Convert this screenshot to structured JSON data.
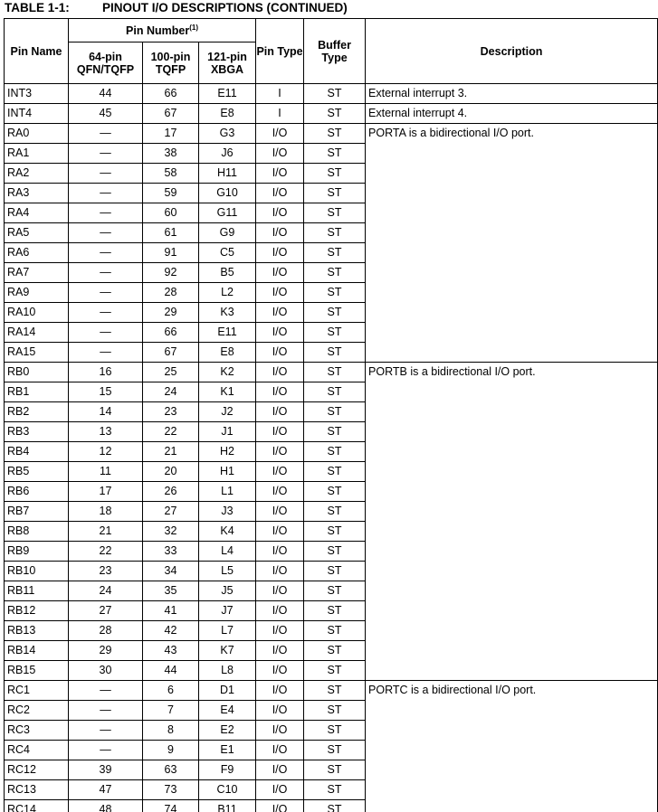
{
  "table": {
    "label": "TABLE 1-1:",
    "title": "PINOUT I/O DESCRIPTIONS (CONTINUED)",
    "headers": {
      "pin_name": "Pin Name",
      "pin_number": "Pin Number",
      "pin_number_note": "(1)",
      "col_64": "64-pin QFN/TQFP",
      "col_100": "100-pin TQFP",
      "col_121": "121-pin XBGA",
      "pin_type": "Pin Type",
      "buffer_type": "Buffer Type",
      "description": "Description"
    },
    "rows": [
      {
        "name": "INT3",
        "p64": "44",
        "p100": "66",
        "p121": "E11",
        "type": "I",
        "buffer": "ST",
        "desc": "External interrupt 3.",
        "span": 1
      },
      {
        "name": "INT4",
        "p64": "45",
        "p100": "67",
        "p121": "E8",
        "type": "I",
        "buffer": "ST",
        "desc": "External interrupt 4.",
        "span": 1
      },
      {
        "name": "RA0",
        "p64": "—",
        "p100": "17",
        "p121": "G3",
        "type": "I/O",
        "buffer": "ST",
        "desc": "PORTA is a bidirectional I/O port.",
        "span": 12
      },
      {
        "name": "RA1",
        "p64": "—",
        "p100": "38",
        "p121": "J6",
        "type": "I/O",
        "buffer": "ST"
      },
      {
        "name": "RA2",
        "p64": "—",
        "p100": "58",
        "p121": "H11",
        "type": "I/O",
        "buffer": "ST"
      },
      {
        "name": "RA3",
        "p64": "—",
        "p100": "59",
        "p121": "G10",
        "type": "I/O",
        "buffer": "ST"
      },
      {
        "name": "RA4",
        "p64": "—",
        "p100": "60",
        "p121": "G11",
        "type": "I/O",
        "buffer": "ST"
      },
      {
        "name": "RA5",
        "p64": "—",
        "p100": "61",
        "p121": "G9",
        "type": "I/O",
        "buffer": "ST"
      },
      {
        "name": "RA6",
        "p64": "—",
        "p100": "91",
        "p121": "C5",
        "type": "I/O",
        "buffer": "ST"
      },
      {
        "name": "RA7",
        "p64": "—",
        "p100": "92",
        "p121": "B5",
        "type": "I/O",
        "buffer": "ST"
      },
      {
        "name": "RA9",
        "p64": "—",
        "p100": "28",
        "p121": "L2",
        "type": "I/O",
        "buffer": "ST"
      },
      {
        "name": "RA10",
        "p64": "—",
        "p100": "29",
        "p121": "K3",
        "type": "I/O",
        "buffer": "ST"
      },
      {
        "name": "RA14",
        "p64": "—",
        "p100": "66",
        "p121": "E11",
        "type": "I/O",
        "buffer": "ST"
      },
      {
        "name": "RA15",
        "p64": "—",
        "p100": "67",
        "p121": "E8",
        "type": "I/O",
        "buffer": "ST"
      },
      {
        "name": "RB0",
        "p64": "16",
        "p100": "25",
        "p121": "K2",
        "type": "I/O",
        "buffer": "ST",
        "desc": "PORTB is a bidirectional I/O port.",
        "span": 16
      },
      {
        "name": "RB1",
        "p64": "15",
        "p100": "24",
        "p121": "K1",
        "type": "I/O",
        "buffer": "ST"
      },
      {
        "name": "RB2",
        "p64": "14",
        "p100": "23",
        "p121": "J2",
        "type": "I/O",
        "buffer": "ST"
      },
      {
        "name": "RB3",
        "p64": "13",
        "p100": "22",
        "p121": "J1",
        "type": "I/O",
        "buffer": "ST"
      },
      {
        "name": "RB4",
        "p64": "12",
        "p100": "21",
        "p121": "H2",
        "type": "I/O",
        "buffer": "ST"
      },
      {
        "name": "RB5",
        "p64": "11",
        "p100": "20",
        "p121": "H1",
        "type": "I/O",
        "buffer": "ST"
      },
      {
        "name": "RB6",
        "p64": "17",
        "p100": "26",
        "p121": "L1",
        "type": "I/O",
        "buffer": "ST"
      },
      {
        "name": "RB7",
        "p64": "18",
        "p100": "27",
        "p121": "J3",
        "type": "I/O",
        "buffer": "ST"
      },
      {
        "name": "RB8",
        "p64": "21",
        "p100": "32",
        "p121": "K4",
        "type": "I/O",
        "buffer": "ST"
      },
      {
        "name": "RB9",
        "p64": "22",
        "p100": "33",
        "p121": "L4",
        "type": "I/O",
        "buffer": "ST"
      },
      {
        "name": "RB10",
        "p64": "23",
        "p100": "34",
        "p121": "L5",
        "type": "I/O",
        "buffer": "ST"
      },
      {
        "name": "RB11",
        "p64": "24",
        "p100": "35",
        "p121": "J5",
        "type": "I/O",
        "buffer": "ST"
      },
      {
        "name": "RB12",
        "p64": "27",
        "p100": "41",
        "p121": "J7",
        "type": "I/O",
        "buffer": "ST"
      },
      {
        "name": "RB13",
        "p64": "28",
        "p100": "42",
        "p121": "L7",
        "type": "I/O",
        "buffer": "ST"
      },
      {
        "name": "RB14",
        "p64": "29",
        "p100": "43",
        "p121": "K7",
        "type": "I/O",
        "buffer": "ST"
      },
      {
        "name": "RB15",
        "p64": "30",
        "p100": "44",
        "p121": "L8",
        "type": "I/O",
        "buffer": "ST"
      },
      {
        "name": "RC1",
        "p64": "—",
        "p100": "6",
        "p121": "D1",
        "type": "I/O",
        "buffer": "ST",
        "desc": "PORTC is a bidirectional I/O port.",
        "span": 7
      },
      {
        "name": "RC2",
        "p64": "—",
        "p100": "7",
        "p121": "E4",
        "type": "I/O",
        "buffer": "ST"
      },
      {
        "name": "RC3",
        "p64": "—",
        "p100": "8",
        "p121": "E2",
        "type": "I/O",
        "buffer": "ST"
      },
      {
        "name": "RC4",
        "p64": "—",
        "p100": "9",
        "p121": "E1",
        "type": "I/O",
        "buffer": "ST"
      },
      {
        "name": "RC12",
        "p64": "39",
        "p100": "63",
        "p121": "F9",
        "type": "I/O",
        "buffer": "ST"
      },
      {
        "name": "RC13",
        "p64": "47",
        "p100": "73",
        "p121": "C10",
        "type": "I/O",
        "buffer": "ST"
      },
      {
        "name": "RC14",
        "p64": "48",
        "p100": "74",
        "p121": "B11",
        "type": "I/O",
        "buffer": "ST"
      }
    ]
  }
}
